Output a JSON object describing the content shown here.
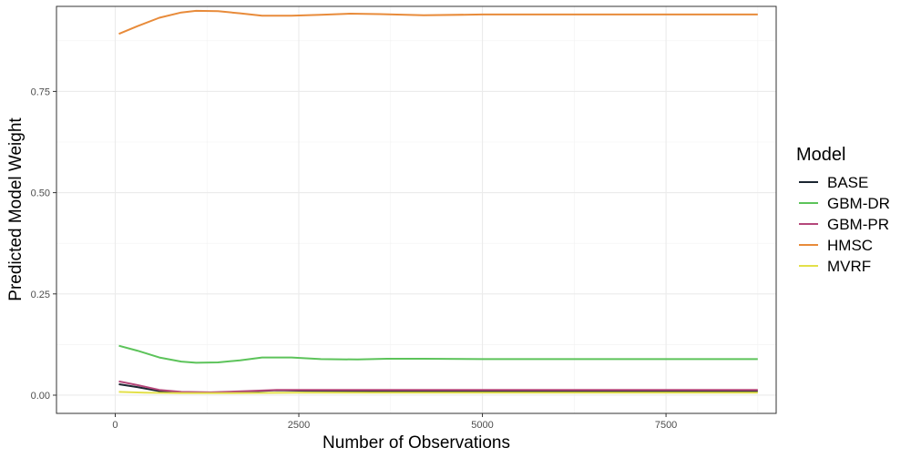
{
  "chart_data": {
    "type": "line",
    "title": "",
    "xlabel": "Number of Observations",
    "ylabel": "Predicted Model Weight",
    "xlim": [
      -800,
      9000
    ],
    "ylim": [
      -0.045,
      0.96
    ],
    "x_ticks": [
      0,
      2500,
      5000,
      7500
    ],
    "x_tick_labels": [
      "0",
      "2500",
      "5000",
      "7500"
    ],
    "y_ticks": [
      0.0,
      0.25,
      0.5,
      0.75
    ],
    "y_tick_labels": [
      "0.00",
      "0.25",
      "0.50",
      "0.75"
    ],
    "grid": true,
    "legend": {
      "title": "Model",
      "position": "right"
    },
    "series": [
      {
        "name": "BASE",
        "color": "#1b2631",
        "x": [
          50,
          300,
          600,
          900,
          1300,
          1800,
          2200,
          2600,
          3500,
          5000,
          7000,
          8750
        ],
        "y": [
          0.027,
          0.02,
          0.01,
          0.006,
          0.006,
          0.009,
          0.012,
          0.011,
          0.01,
          0.01,
          0.01,
          0.01
        ]
      },
      {
        "name": "GBM-DR",
        "color": "#5cc35a",
        "x": [
          50,
          300,
          600,
          900,
          1100,
          1400,
          1700,
          2000,
          2400,
          2800,
          3300,
          3700,
          4200,
          5000,
          6000,
          7000,
          8000,
          8750
        ],
        "y": [
          0.122,
          0.11,
          0.093,
          0.083,
          0.08,
          0.081,
          0.086,
          0.093,
          0.093,
          0.089,
          0.088,
          0.09,
          0.09,
          0.089,
          0.089,
          0.089,
          0.089,
          0.089
        ]
      },
      {
        "name": "GBM-PR",
        "color": "#b5477a",
        "x": [
          50,
          300,
          600,
          900,
          1300,
          1800,
          2200,
          2600,
          3500,
          5000,
          7000,
          8750
        ],
        "y": [
          0.034,
          0.025,
          0.013,
          0.008,
          0.007,
          0.01,
          0.013,
          0.013,
          0.013,
          0.013,
          0.013,
          0.013
        ]
      },
      {
        "name": "HMSC",
        "color": "#e88b3a",
        "x": [
          50,
          300,
          600,
          900,
          1100,
          1400,
          1700,
          2000,
          2400,
          2800,
          3200,
          3600,
          4200,
          5000,
          6000,
          7000,
          8000,
          8750
        ],
        "y": [
          0.892,
          0.911,
          0.932,
          0.945,
          0.949,
          0.948,
          0.943,
          0.937,
          0.937,
          0.939,
          0.942,
          0.941,
          0.938,
          0.94,
          0.94,
          0.94,
          0.94,
          0.94
        ]
      },
      {
        "name": "MVRF",
        "color": "#e3e04a",
        "x": [
          50,
          400,
          900,
          1500,
          2500,
          4000,
          6000,
          8750
        ],
        "y": [
          0.008,
          0.006,
          0.005,
          0.005,
          0.006,
          0.006,
          0.006,
          0.006
        ]
      }
    ]
  }
}
